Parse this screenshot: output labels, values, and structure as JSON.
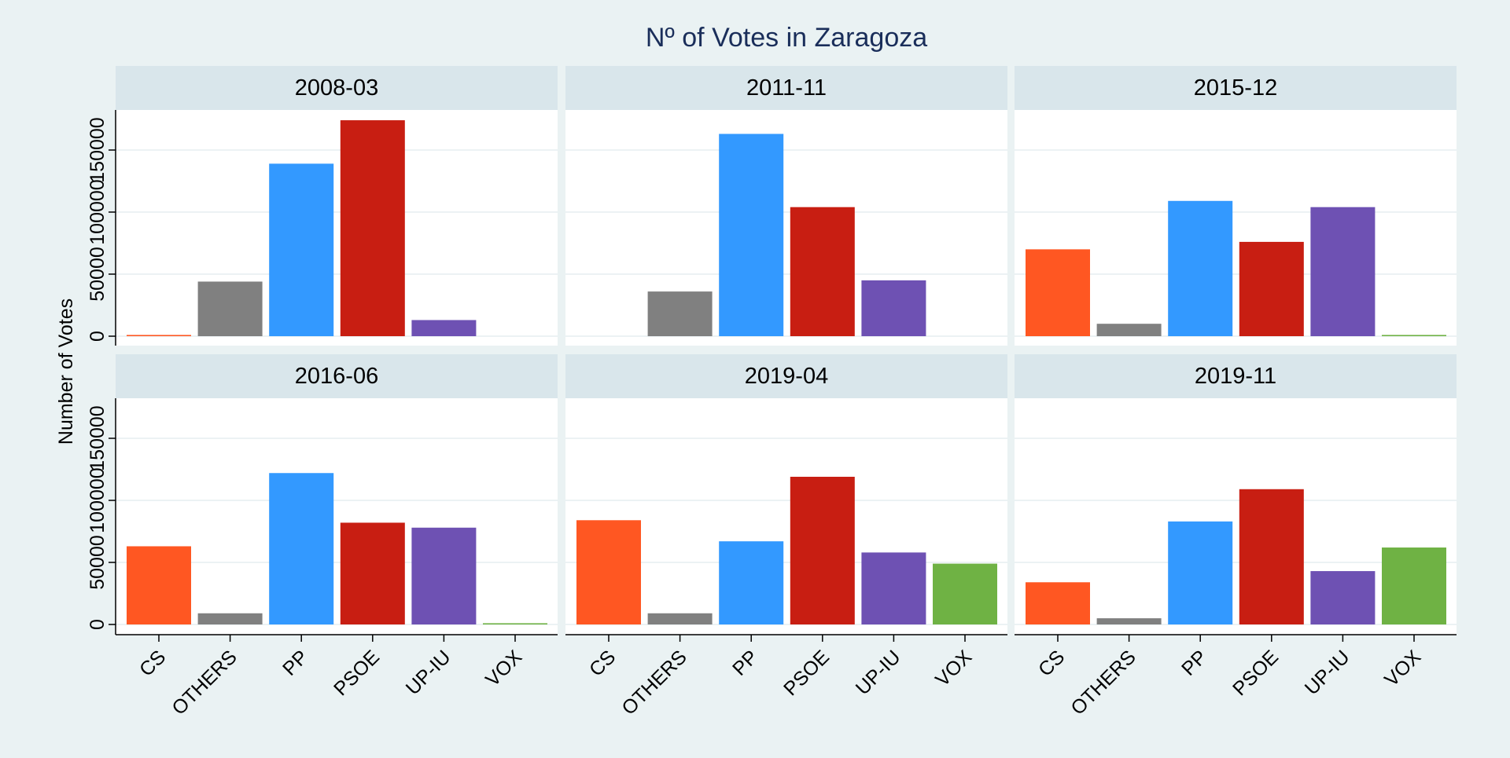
{
  "chart_data": {
    "type": "bar",
    "title": "Nº of Votes in Zaragoza",
    "xlabel": "",
    "ylabel": "Number of Votes",
    "ylim": [
      0,
      175000
    ],
    "yticks": [
      0,
      50000,
      100000,
      150000
    ],
    "ytick_labels": [
      "0",
      "50000",
      "100000",
      "150000"
    ],
    "grid": true,
    "facets": true,
    "categories": [
      "CS",
      "OTHERS",
      "PP",
      "PSOE",
      "UP-IU",
      "VOX"
    ],
    "colors": {
      "CS": "#ff5722",
      "OTHERS": "#808080",
      "PP": "#3399ff",
      "PSOE": "#c81e12",
      "UP-IU": "#6e51b3",
      "VOX": "#6fb244"
    },
    "panels": [
      {
        "label": "2008-03",
        "values": [
          1000,
          44000,
          139000,
          174000,
          13000,
          0
        ]
      },
      {
        "label": "2011-11",
        "values": [
          0,
          36000,
          163000,
          104000,
          45000,
          0
        ]
      },
      {
        "label": "2015-12",
        "values": [
          70000,
          10000,
          109000,
          76000,
          104000,
          1000
        ]
      },
      {
        "label": "2016-06",
        "values": [
          63000,
          9000,
          122000,
          82000,
          78000,
          1000
        ]
      },
      {
        "label": "2019-04",
        "values": [
          84000,
          9000,
          67000,
          119000,
          58000,
          49000
        ]
      },
      {
        "label": "2019-11",
        "values": [
          34000,
          5000,
          83000,
          109000,
          43000,
          62000
        ]
      }
    ]
  }
}
